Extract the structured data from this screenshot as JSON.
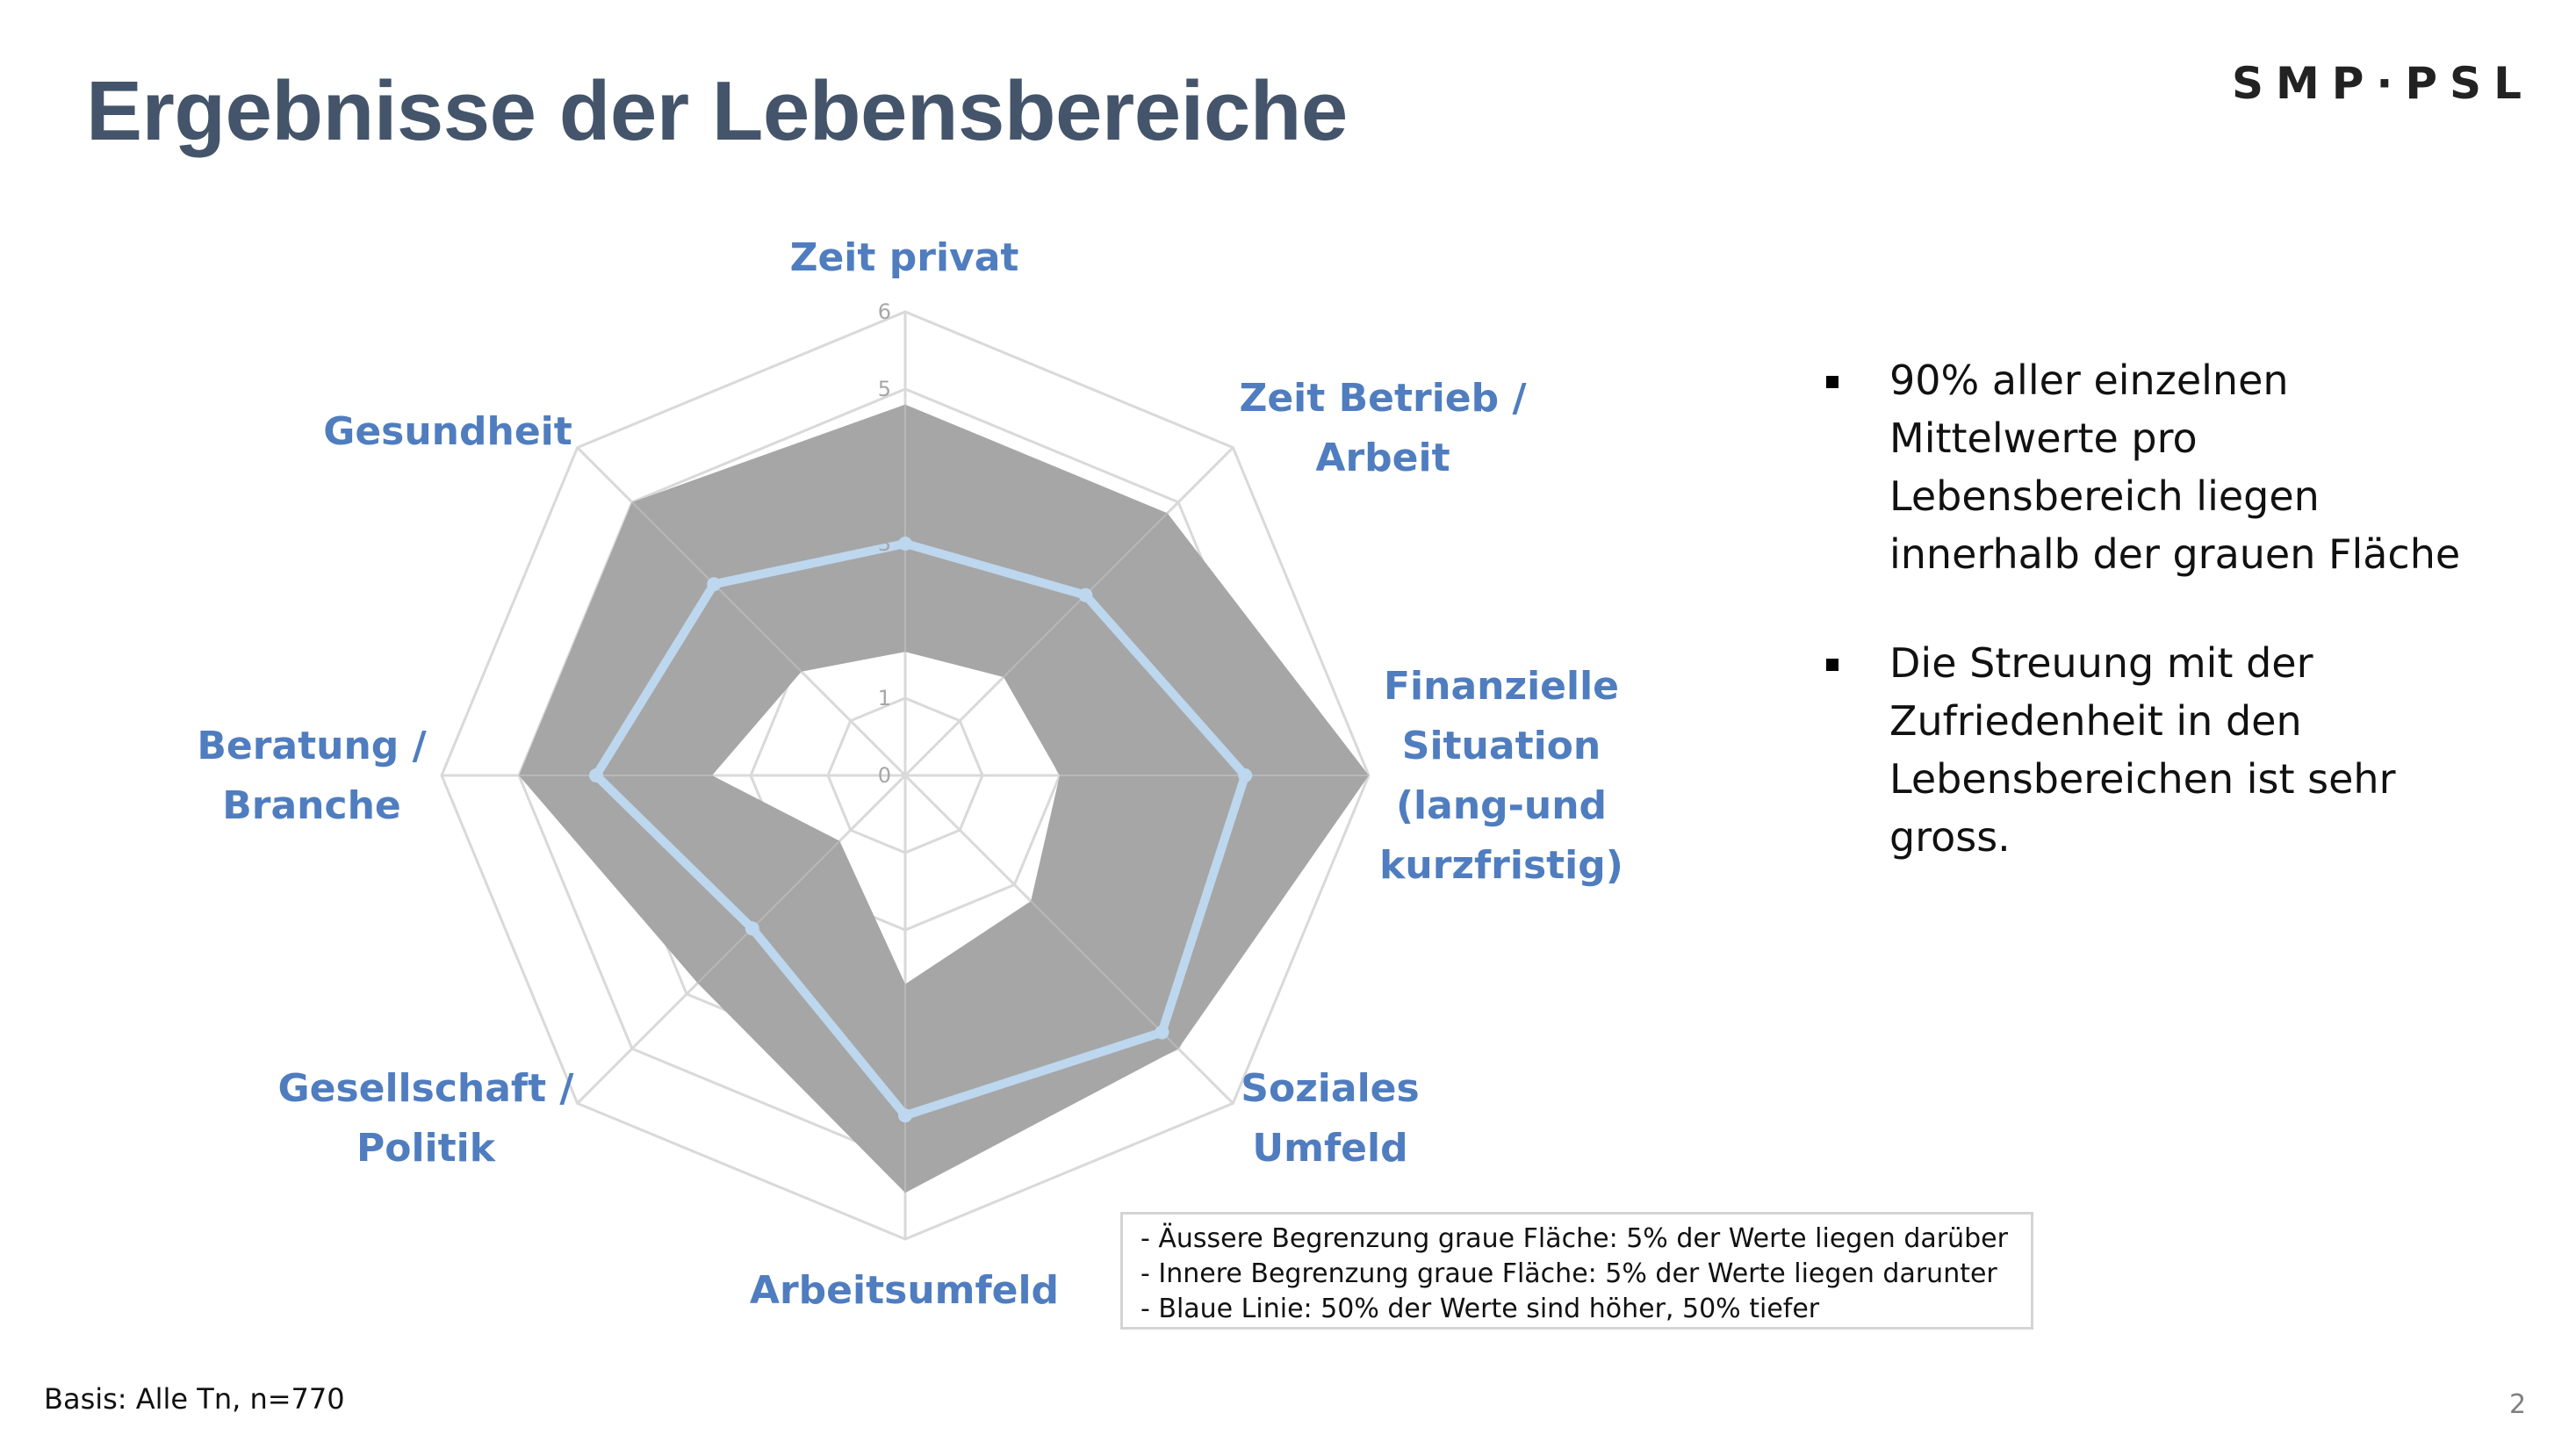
{
  "slide": {
    "title": "Ergebnisse der Lebensbereiche",
    "logo": "SMP·PSL",
    "basis": "Basis: Alle Tn, n=770",
    "page_number": "2"
  },
  "bullets": [
    "90% aller einzelnen Mittelwerte pro Lebensbereich liegen innerhalb der grauen Fläche",
    "Die Streuung mit der Zufriedenheit in den Lebensbereichen ist sehr gross."
  ],
  "legend": [
    "- Äussere Begrenzung graue Fläche: 5% der Werte liegen darüber",
    "- Innere Begrenzung graue Fläche: 5% der Werte liegen darunter",
    "- Blaue Linie: 50% der Werte sind höher, 50% tiefer"
  ],
  "colors": {
    "title": "#44546a",
    "axis_label": "#4f7dbf",
    "band_fill": "#a6a6a6",
    "median_line": "#bdd7ee",
    "grid": "#d9d9d9",
    "tick": "#a6a6a6"
  },
  "chart_data": {
    "type": "radar",
    "title": "",
    "categories": [
      "Zeit privat",
      "Zeit Betrieb / Arbeit",
      "Finanzielle Situation (lang-und kurzfristig)",
      "Soziales Umfeld",
      "Arbeitsumfeld",
      "Gesellschaft / Politik",
      "Beratung / Branche",
      "Gesundheit"
    ],
    "r_range": [
      0,
      6
    ],
    "r_ticks": [
      0,
      1,
      2,
      3,
      4,
      5,
      6
    ],
    "r_tick_labels_visible": [
      "0",
      "1",
      "3",
      "5",
      "6"
    ],
    "series": [
      {
        "name": "Äussere Begrenzung (95%)",
        "role": "band-outer",
        "values": [
          4.8,
          4.8,
          6.0,
          5.0,
          5.4,
          3.8,
          5.0,
          5.0
        ]
      },
      {
        "name": "Innere Begrenzung (5%)",
        "role": "band-inner",
        "values": [
          1.6,
          1.8,
          2.0,
          2.3,
          2.7,
          1.2,
          2.5,
          1.9
        ]
      },
      {
        "name": "Median",
        "role": "line",
        "values": [
          3.0,
          3.3,
          4.4,
          4.7,
          4.4,
          2.8,
          4.0,
          3.5
        ]
      }
    ]
  }
}
